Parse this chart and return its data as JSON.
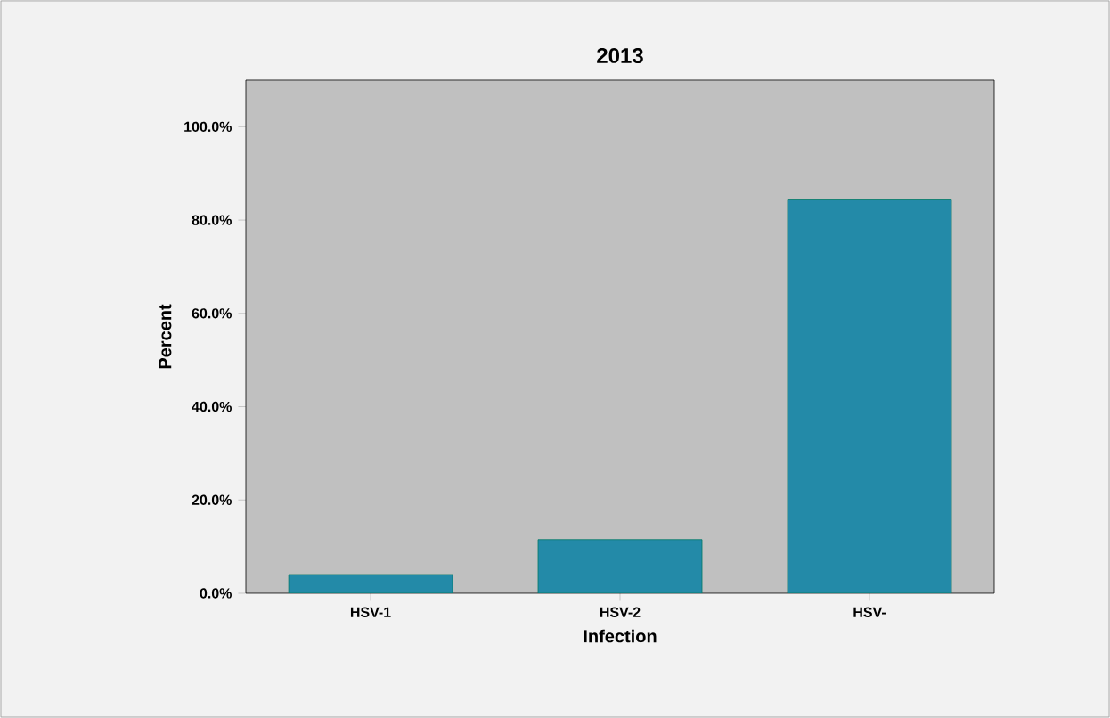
{
  "chart_data": {
    "type": "bar",
    "title": "2013",
    "xlabel": "Infection",
    "ylabel": "Percent",
    "categories": [
      "HSV-1",
      "HSV-2",
      "HSV-"
    ],
    "values": [
      4,
      11.5,
      84.5
    ],
    "color": "#238aa8",
    "ylim": [
      0,
      110
    ],
    "yticks": [
      {
        "value": 0,
        "label": "0.0%"
      },
      {
        "value": 20,
        "label": "20.0%"
      },
      {
        "value": 40,
        "label": "40.0%"
      },
      {
        "value": 60,
        "label": "60.0%"
      },
      {
        "value": 80,
        "label": "80.0%"
      },
      {
        "value": 100,
        "label": "100.0%"
      }
    ]
  }
}
